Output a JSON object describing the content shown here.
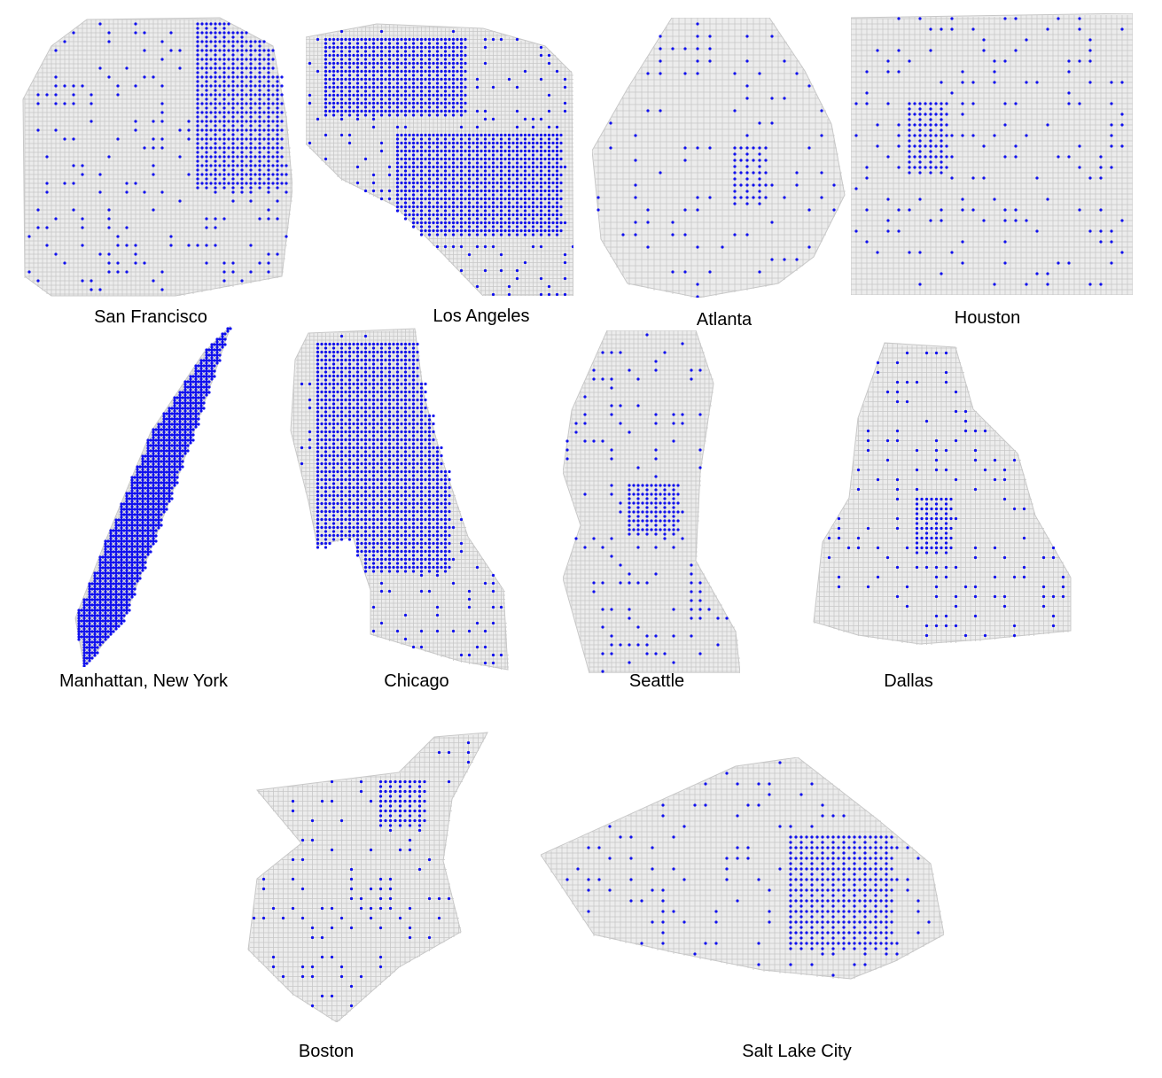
{
  "figure": {
    "road_color": "#c8c8c8",
    "node_color": "#1010ee",
    "maps": [
      {
        "id": "san-francisco",
        "caption": "San Francisco"
      },
      {
        "id": "los-angeles",
        "caption": "Los Angeles"
      },
      {
        "id": "atlanta",
        "caption": "Atlanta"
      },
      {
        "id": "houston",
        "caption": "Houston"
      },
      {
        "id": "manhattan",
        "caption": "Manhattan, New York"
      },
      {
        "id": "chicago",
        "caption": "Chicago"
      },
      {
        "id": "seattle",
        "caption": "Seattle"
      },
      {
        "id": "dallas",
        "caption": "Dallas"
      },
      {
        "id": "boston",
        "caption": "Boston"
      },
      {
        "id": "salt-lake-city",
        "caption": "Salt Lake City"
      }
    ]
  }
}
